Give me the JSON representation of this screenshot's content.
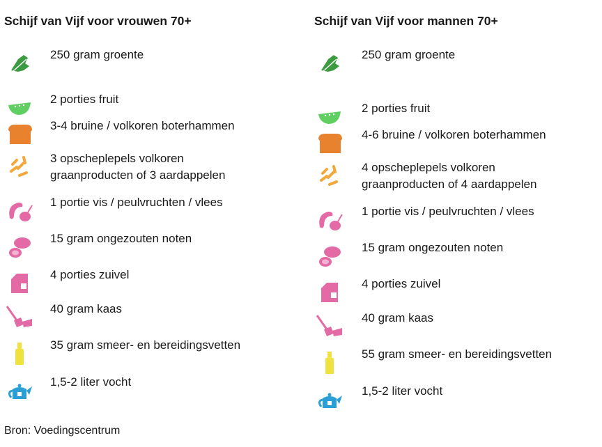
{
  "left": {
    "title": "Schijf van Vijf voor vrouwen 70+",
    "items": [
      {
        "icon": "vegetable-icon",
        "text": "250 gram groente"
      },
      {
        "icon": "fruit-icon",
        "text": "2 porties fruit"
      },
      {
        "icon": "bread-icon",
        "text": "3-4 bruine / volkoren boterhammen"
      },
      {
        "icon": "grain-icon",
        "text": "3 opscheplepels volkoren",
        "text2": "graanproducten of 3 aardappelen"
      },
      {
        "icon": "fish-meat-icon",
        "text": "1 portie vis / peulvruchten / vlees"
      },
      {
        "icon": "nuts-icon",
        "text": "15 gram ongezouten noten"
      },
      {
        "icon": "milk-icon",
        "text": "4 porties zuivel"
      },
      {
        "icon": "cheese-icon",
        "text": "40 gram kaas"
      },
      {
        "icon": "oil-icon",
        "text": "35 gram smeer- en bereidingsvetten"
      },
      {
        "icon": "teapot-icon",
        "text": "1,5-2 liter vocht"
      }
    ]
  },
  "right": {
    "title": "Schijf van Vijf voor mannen 70+",
    "items": [
      {
        "icon": "vegetable-icon",
        "text": "250 gram groente"
      },
      {
        "icon": "fruit-icon",
        "text": "2 porties fruit"
      },
      {
        "icon": "bread-icon",
        "text": "4-6 bruine / volkoren boterhammen"
      },
      {
        "icon": "grain-icon",
        "text": "4 opscheplepels volkoren",
        "text2": "graanproducten of 4 aardappelen"
      },
      {
        "icon": "fish-meat-icon",
        "text": "1 portie vis / peulvruchten / vlees"
      },
      {
        "icon": "nuts-icon",
        "text": "15 gram ongezouten noten"
      },
      {
        "icon": "milk-icon",
        "text": "4 porties zuivel"
      },
      {
        "icon": "cheese-icon",
        "text": "40 gram kaas"
      },
      {
        "icon": "oil-icon",
        "text": "55 gram smeer- en bereidingsvetten"
      },
      {
        "icon": "teapot-icon",
        "text": "1,5-2 liter vocht"
      }
    ]
  },
  "footer": "Bron: Voedingscentrum",
  "colors": {
    "green": "#3c9b40",
    "lightgreen": "#5fcf62",
    "orange": "#e8822e",
    "amber": "#f2a83a",
    "pink": "#e46aa6",
    "yellow": "#efe13e",
    "blue": "#2a9fd6"
  }
}
